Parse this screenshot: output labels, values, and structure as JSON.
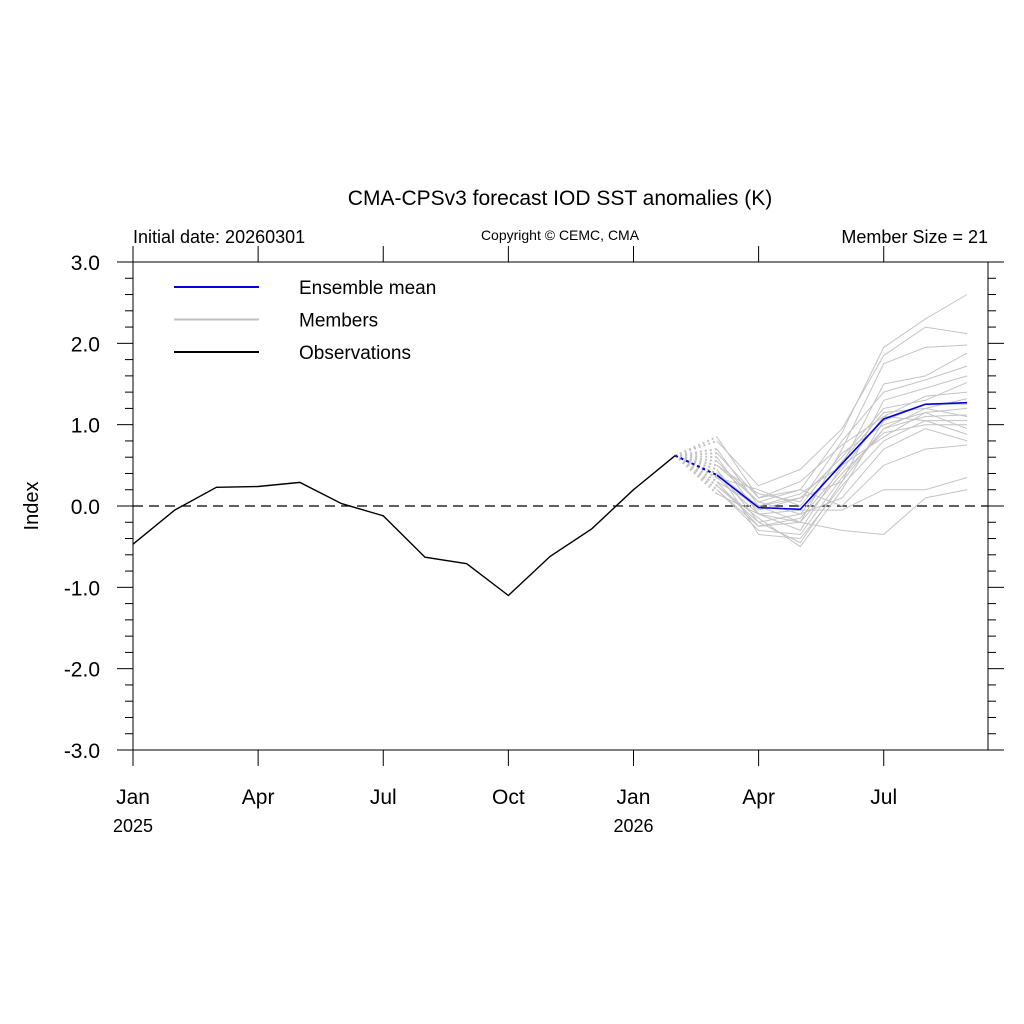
{
  "chart_data": {
    "type": "line",
    "title": "CMA-CPSv3 forecast IOD SST anomalies (K)",
    "subtitle_left": "Initial date: 20260301",
    "subtitle_center": "Copyright © CEMC, CMA",
    "subtitle_right": "Member Size = 21",
    "ylabel": "Index",
    "xlabel": "",
    "ylim": [
      -3.0,
      3.0
    ],
    "xlim": [
      0,
      20.5
    ],
    "y_ticks": [
      {
        "v": 3.0,
        "label": "3.0"
      },
      {
        "v": 2.0,
        "label": "2.0"
      },
      {
        "v": 1.0,
        "label": "1.0"
      },
      {
        "v": 0.0,
        "label": "0.0"
      },
      {
        "v": -1.0,
        "label": "-1.0"
      },
      {
        "v": -2.0,
        "label": "-2.0"
      },
      {
        "v": -3.0,
        "label": "-3.0"
      }
    ],
    "x_ticks": [
      {
        "v": 0,
        "label": "Jan",
        "year": "2025"
      },
      {
        "v": 3,
        "label": "Apr",
        "year": ""
      },
      {
        "v": 6,
        "label": "Jul",
        "year": ""
      },
      {
        "v": 9,
        "label": "Oct",
        "year": ""
      },
      {
        "v": 12,
        "label": "Jan",
        "year": "2026"
      },
      {
        "v": 15,
        "label": "Apr",
        "year": ""
      },
      {
        "v": 18,
        "label": "Jul",
        "year": ""
      }
    ],
    "zero_line": 0.0,
    "legend_position": "top-left",
    "legend": [
      {
        "label": "Ensemble mean",
        "color": "#0000dd"
      },
      {
        "label": "Members",
        "color": "#bfbfbf"
      },
      {
        "label": "Observations",
        "color": "#000000"
      }
    ],
    "series": [
      {
        "name": "Observations",
        "color": "#000000",
        "x": [
          0,
          1,
          2,
          3,
          4,
          5,
          6,
          7,
          8,
          9,
          10,
          11,
          12,
          13
        ],
        "y": [
          -0.47,
          -0.05,
          0.23,
          0.24,
          0.29,
          0.03,
          -0.12,
          -0.63,
          -0.71,
          -1.1,
          -0.62,
          -0.28,
          0.2,
          0.62
        ]
      },
      {
        "name": "Ensemble mean",
        "color": "#0000dd",
        "x": [
          13,
          14,
          15,
          16,
          17,
          18,
          19,
          20
        ],
        "y": [
          0.62,
          0.38,
          -0.02,
          -0.04,
          0.52,
          1.07,
          1.25,
          1.27
        ]
      }
    ],
    "members": [
      {
        "x": [
          13,
          14,
          15,
          16,
          17,
          18,
          19,
          20
        ],
        "y": [
          0.62,
          0.85,
          0.1,
          0.2,
          0.9,
          1.95,
          2.3,
          2.6
        ]
      },
      {
        "x": [
          13,
          14,
          15,
          16,
          17,
          18,
          19,
          20
        ],
        "y": [
          0.62,
          0.8,
          0.25,
          0.45,
          0.95,
          1.85,
          2.2,
          2.12
        ]
      },
      {
        "x": [
          13,
          14,
          15,
          16,
          17,
          18,
          19,
          20
        ],
        "y": [
          0.62,
          0.7,
          0.0,
          -0.2,
          0.7,
          1.75,
          1.95,
          1.98
        ]
      },
      {
        "x": [
          13,
          14,
          15,
          16,
          17,
          18,
          19,
          20
        ],
        "y": [
          0.62,
          0.6,
          -0.1,
          -0.3,
          0.5,
          1.5,
          1.6,
          1.88
        ]
      },
      {
        "x": [
          13,
          14,
          15,
          16,
          17,
          18,
          19,
          20
        ],
        "y": [
          0.62,
          0.5,
          0.15,
          0.05,
          0.8,
          1.4,
          1.55,
          1.72
        ]
      },
      {
        "x": [
          13,
          14,
          15,
          16,
          17,
          18,
          19,
          20
        ],
        "y": [
          0.62,
          0.45,
          -0.2,
          -0.45,
          0.3,
          1.3,
          1.45,
          1.6
        ]
      },
      {
        "x": [
          13,
          14,
          15,
          16,
          17,
          18,
          19,
          20
        ],
        "y": [
          0.62,
          0.4,
          -0.05,
          0.1,
          0.6,
          1.2,
          1.3,
          1.52
        ]
      },
      {
        "x": [
          13,
          14,
          15,
          16,
          17,
          18,
          19,
          20
        ],
        "y": [
          0.62,
          0.3,
          -0.25,
          -0.15,
          0.45,
          1.1,
          1.35,
          1.4
        ]
      },
      {
        "x": [
          13,
          14,
          15,
          16,
          17,
          18,
          19,
          20
        ],
        "y": [
          0.62,
          0.55,
          0.05,
          -0.1,
          0.55,
          1.15,
          1.2,
          1.32
        ]
      },
      {
        "x": [
          13,
          14,
          15,
          16,
          17,
          18,
          19,
          20
        ],
        "y": [
          0.62,
          0.25,
          -0.15,
          -0.5,
          0.2,
          1.05,
          1.25,
          1.25
        ]
      },
      {
        "x": [
          13,
          14,
          15,
          16,
          17,
          18,
          19,
          20
        ],
        "y": [
          0.62,
          0.35,
          0.2,
          0.0,
          0.65,
          1.0,
          1.15,
          1.2
        ]
      },
      {
        "x": [
          13,
          14,
          15,
          16,
          17,
          18,
          19,
          20
        ],
        "y": [
          0.62,
          0.2,
          -0.3,
          -0.35,
          0.35,
          0.95,
          1.1,
          1.12
        ]
      },
      {
        "x": [
          13,
          14,
          15,
          16,
          17,
          18,
          19,
          20
        ],
        "y": [
          0.62,
          0.65,
          0.1,
          0.3,
          0.75,
          1.1,
          1.05,
          1.05
        ]
      },
      {
        "x": [
          13,
          14,
          15,
          16,
          17,
          18,
          19,
          20
        ],
        "y": [
          0.62,
          0.15,
          -0.1,
          -0.2,
          0.4,
          0.9,
          1.0,
          1.0
        ]
      },
      {
        "x": [
          13,
          14,
          15,
          16,
          17,
          18,
          19,
          20
        ],
        "y": [
          0.62,
          0.3,
          0.0,
          0.15,
          0.5,
          0.85,
          1.15,
          0.95
        ]
      },
      {
        "x": [
          13,
          14,
          15,
          16,
          17,
          18,
          19,
          20
        ],
        "y": [
          0.62,
          0.45,
          -0.35,
          -0.4,
          0.25,
          0.8,
          1.05,
          0.88
        ]
      },
      {
        "x": [
          13,
          14,
          15,
          16,
          17,
          18,
          19,
          20
        ],
        "y": [
          0.62,
          0.25,
          -0.2,
          -0.1,
          0.1,
          0.7,
          0.95,
          0.8
        ]
      },
      {
        "x": [
          13,
          14,
          15,
          16,
          17,
          18,
          19,
          20
        ],
        "y": [
          0.62,
          0.5,
          0.05,
          0.2,
          0.0,
          0.5,
          0.7,
          0.75
        ]
      },
      {
        "x": [
          13,
          14,
          15,
          16,
          17,
          18,
          19,
          20
        ],
        "y": [
          0.62,
          0.35,
          -0.1,
          -0.05,
          -0.05,
          0.2,
          0.2,
          0.35
        ]
      },
      {
        "x": [
          13,
          14,
          15,
          16,
          17,
          18,
          19,
          20
        ],
        "y": [
          0.62,
          0.2,
          -0.25,
          -0.2,
          -0.3,
          -0.35,
          0.1,
          0.2
        ]
      },
      {
        "x": [
          13,
          14,
          15,
          16,
          17,
          18,
          19,
          20
        ],
        "y": [
          0.62,
          0.4,
          0.0,
          0.1,
          0.3,
          0.95,
          1.2,
          1.1
        ]
      }
    ]
  }
}
